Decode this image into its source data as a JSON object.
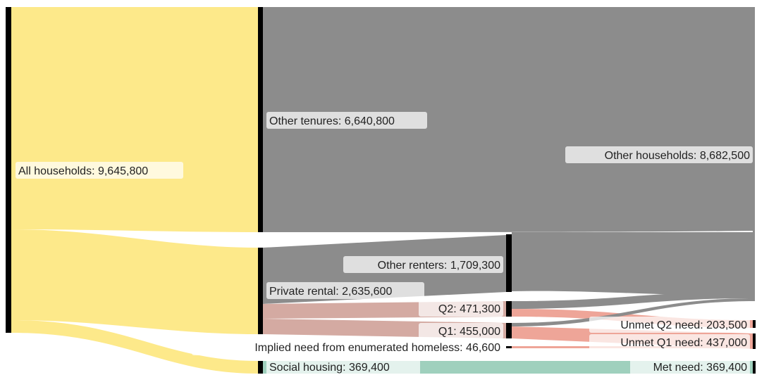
{
  "diagram": {
    "type": "sankey",
    "colors": {
      "households": "#fde98a",
      "other": "#8c8c8c",
      "private": "#d4aaa2",
      "unmet": "#eea598",
      "social": "#9fd0bd",
      "node": "#000000"
    },
    "nodes": {
      "all_households": "All households: 9,645,800",
      "other_tenures": "Other tenures: 6,640,800",
      "other_households": "Other households: 8,682,500",
      "other_renters": "Other renters: 1,709,300",
      "private_rental": "Private rental: 2,635,600",
      "q2": "Q2: 471,300",
      "q1": "Q1: 455,000",
      "unmet_q2": "Unmet Q2 need: 203,500",
      "unmet_q1": "Unmet Q1 need: 437,000",
      "homeless": "Implied need from enumerated homeless: 46,600",
      "social_housing": "Social housing: 369,400",
      "met_need": "Met need: 369,400"
    },
    "values": {
      "all_households": 9645800,
      "other_tenures": 6640800,
      "private_rental": 2635600,
      "social_housing": 369400,
      "other_renters": 1709300,
      "q2": 471300,
      "q1": 455000,
      "homeless": 46600,
      "other_households": 8682500,
      "unmet_q2": 203500,
      "unmet_q1": 437000,
      "met_need": 369400
    }
  }
}
